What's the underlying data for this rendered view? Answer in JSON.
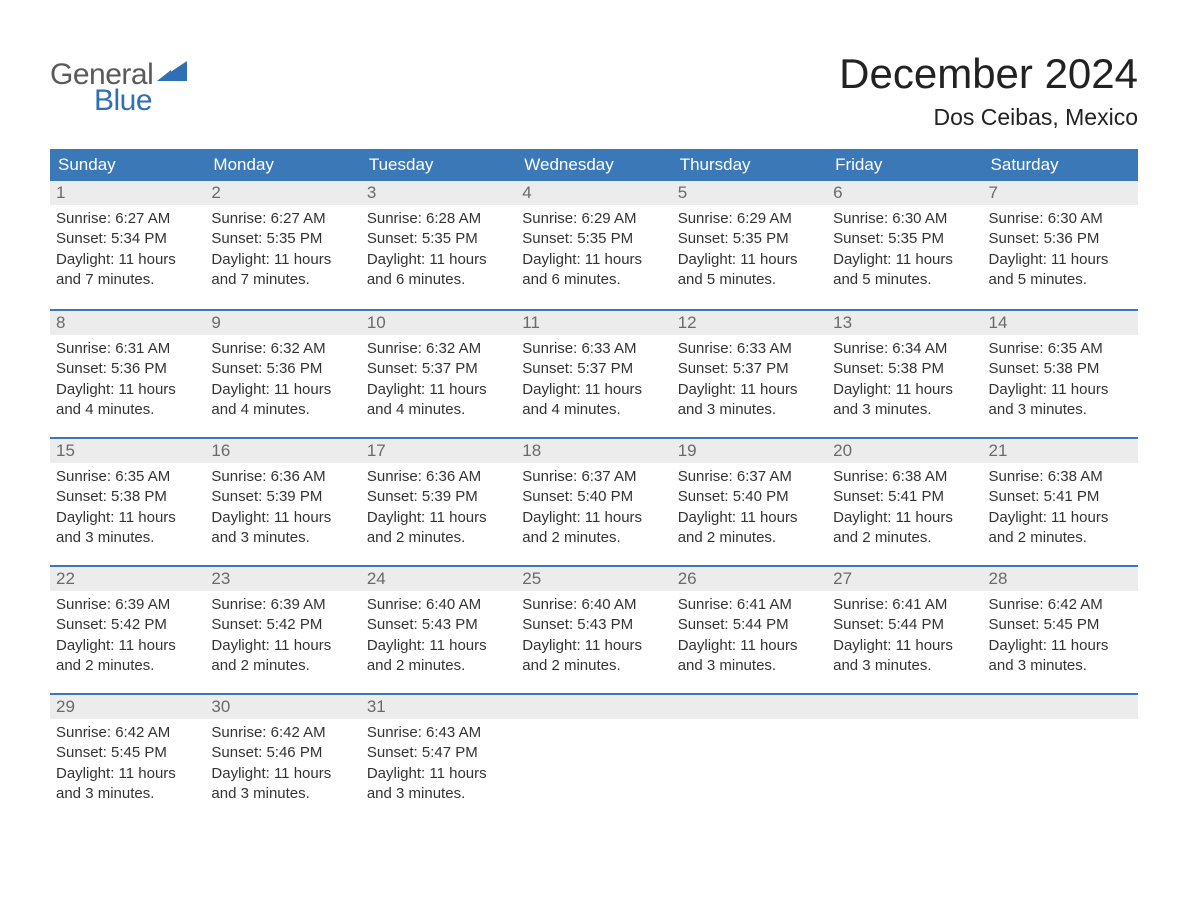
{
  "logo": {
    "word1": "General",
    "word2": "Blue",
    "text_color_1": "#5a5a5a",
    "text_color_2": "#2f6fb3",
    "triangle_color": "#2f6fb3"
  },
  "title": "December 2024",
  "location": "Dos Ceibas, Mexico",
  "colors": {
    "header_bg": "#3b78b8",
    "header_text": "#ffffff",
    "daynum_bg": "#ececec",
    "daynum_text": "#6a6a6a",
    "body_text": "#333333",
    "week_border": "#3b78b8",
    "page_bg": "#ffffff"
  },
  "typography": {
    "title_fontsize": 42,
    "location_fontsize": 23,
    "header_fontsize": 17,
    "daynum_fontsize": 17,
    "body_fontsize": 15,
    "font_family": "Arial"
  },
  "day_headers": [
    "Sunday",
    "Monday",
    "Tuesday",
    "Wednesday",
    "Thursday",
    "Friday",
    "Saturday"
  ],
  "weeks": [
    [
      {
        "n": "1",
        "sr": "Sunrise: 6:27 AM",
        "ss": "Sunset: 5:34 PM",
        "d1": "Daylight: 11 hours",
        "d2": "and 7 minutes."
      },
      {
        "n": "2",
        "sr": "Sunrise: 6:27 AM",
        "ss": "Sunset: 5:35 PM",
        "d1": "Daylight: 11 hours",
        "d2": "and 7 minutes."
      },
      {
        "n": "3",
        "sr": "Sunrise: 6:28 AM",
        "ss": "Sunset: 5:35 PM",
        "d1": "Daylight: 11 hours",
        "d2": "and 6 minutes."
      },
      {
        "n": "4",
        "sr": "Sunrise: 6:29 AM",
        "ss": "Sunset: 5:35 PM",
        "d1": "Daylight: 11 hours",
        "d2": "and 6 minutes."
      },
      {
        "n": "5",
        "sr": "Sunrise: 6:29 AM",
        "ss": "Sunset: 5:35 PM",
        "d1": "Daylight: 11 hours",
        "d2": "and 5 minutes."
      },
      {
        "n": "6",
        "sr": "Sunrise: 6:30 AM",
        "ss": "Sunset: 5:35 PM",
        "d1": "Daylight: 11 hours",
        "d2": "and 5 minutes."
      },
      {
        "n": "7",
        "sr": "Sunrise: 6:30 AM",
        "ss": "Sunset: 5:36 PM",
        "d1": "Daylight: 11 hours",
        "d2": "and 5 minutes."
      }
    ],
    [
      {
        "n": "8",
        "sr": "Sunrise: 6:31 AM",
        "ss": "Sunset: 5:36 PM",
        "d1": "Daylight: 11 hours",
        "d2": "and 4 minutes."
      },
      {
        "n": "9",
        "sr": "Sunrise: 6:32 AM",
        "ss": "Sunset: 5:36 PM",
        "d1": "Daylight: 11 hours",
        "d2": "and 4 minutes."
      },
      {
        "n": "10",
        "sr": "Sunrise: 6:32 AM",
        "ss": "Sunset: 5:37 PM",
        "d1": "Daylight: 11 hours",
        "d2": "and 4 minutes."
      },
      {
        "n": "11",
        "sr": "Sunrise: 6:33 AM",
        "ss": "Sunset: 5:37 PM",
        "d1": "Daylight: 11 hours",
        "d2": "and 4 minutes."
      },
      {
        "n": "12",
        "sr": "Sunrise: 6:33 AM",
        "ss": "Sunset: 5:37 PM",
        "d1": "Daylight: 11 hours",
        "d2": "and 3 minutes."
      },
      {
        "n": "13",
        "sr": "Sunrise: 6:34 AM",
        "ss": "Sunset: 5:38 PM",
        "d1": "Daylight: 11 hours",
        "d2": "and 3 minutes."
      },
      {
        "n": "14",
        "sr": "Sunrise: 6:35 AM",
        "ss": "Sunset: 5:38 PM",
        "d1": "Daylight: 11 hours",
        "d2": "and 3 minutes."
      }
    ],
    [
      {
        "n": "15",
        "sr": "Sunrise: 6:35 AM",
        "ss": "Sunset: 5:38 PM",
        "d1": "Daylight: 11 hours",
        "d2": "and 3 minutes."
      },
      {
        "n": "16",
        "sr": "Sunrise: 6:36 AM",
        "ss": "Sunset: 5:39 PM",
        "d1": "Daylight: 11 hours",
        "d2": "and 3 minutes."
      },
      {
        "n": "17",
        "sr": "Sunrise: 6:36 AM",
        "ss": "Sunset: 5:39 PM",
        "d1": "Daylight: 11 hours",
        "d2": "and 2 minutes."
      },
      {
        "n": "18",
        "sr": "Sunrise: 6:37 AM",
        "ss": "Sunset: 5:40 PM",
        "d1": "Daylight: 11 hours",
        "d2": "and 2 minutes."
      },
      {
        "n": "19",
        "sr": "Sunrise: 6:37 AM",
        "ss": "Sunset: 5:40 PM",
        "d1": "Daylight: 11 hours",
        "d2": "and 2 minutes."
      },
      {
        "n": "20",
        "sr": "Sunrise: 6:38 AM",
        "ss": "Sunset: 5:41 PM",
        "d1": "Daylight: 11 hours",
        "d2": "and 2 minutes."
      },
      {
        "n": "21",
        "sr": "Sunrise: 6:38 AM",
        "ss": "Sunset: 5:41 PM",
        "d1": "Daylight: 11 hours",
        "d2": "and 2 minutes."
      }
    ],
    [
      {
        "n": "22",
        "sr": "Sunrise: 6:39 AM",
        "ss": "Sunset: 5:42 PM",
        "d1": "Daylight: 11 hours",
        "d2": "and 2 minutes."
      },
      {
        "n": "23",
        "sr": "Sunrise: 6:39 AM",
        "ss": "Sunset: 5:42 PM",
        "d1": "Daylight: 11 hours",
        "d2": "and 2 minutes."
      },
      {
        "n": "24",
        "sr": "Sunrise: 6:40 AM",
        "ss": "Sunset: 5:43 PM",
        "d1": "Daylight: 11 hours",
        "d2": "and 2 minutes."
      },
      {
        "n": "25",
        "sr": "Sunrise: 6:40 AM",
        "ss": "Sunset: 5:43 PM",
        "d1": "Daylight: 11 hours",
        "d2": "and 2 minutes."
      },
      {
        "n": "26",
        "sr": "Sunrise: 6:41 AM",
        "ss": "Sunset: 5:44 PM",
        "d1": "Daylight: 11 hours",
        "d2": "and 3 minutes."
      },
      {
        "n": "27",
        "sr": "Sunrise: 6:41 AM",
        "ss": "Sunset: 5:44 PM",
        "d1": "Daylight: 11 hours",
        "d2": "and 3 minutes."
      },
      {
        "n": "28",
        "sr": "Sunrise: 6:42 AM",
        "ss": "Sunset: 5:45 PM",
        "d1": "Daylight: 11 hours",
        "d2": "and 3 minutes."
      }
    ],
    [
      {
        "n": "29",
        "sr": "Sunrise: 6:42 AM",
        "ss": "Sunset: 5:45 PM",
        "d1": "Daylight: 11 hours",
        "d2": "and 3 minutes."
      },
      {
        "n": "30",
        "sr": "Sunrise: 6:42 AM",
        "ss": "Sunset: 5:46 PM",
        "d1": "Daylight: 11 hours",
        "d2": "and 3 minutes."
      },
      {
        "n": "31",
        "sr": "Sunrise: 6:43 AM",
        "ss": "Sunset: 5:47 PM",
        "d1": "Daylight: 11 hours",
        "d2": "and 3 minutes."
      },
      null,
      null,
      null,
      null
    ]
  ]
}
